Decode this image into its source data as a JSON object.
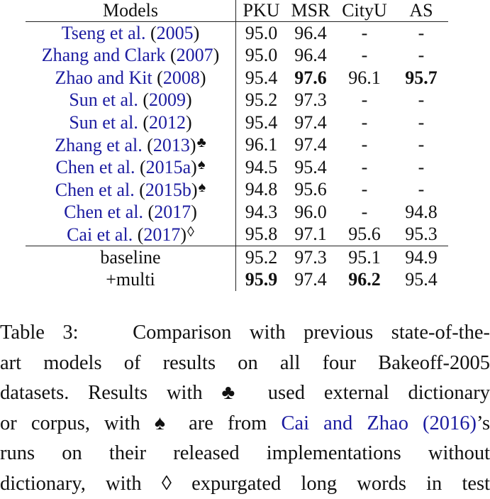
{
  "table": {
    "headers": [
      "Models",
      "PKU",
      "MSR",
      "CityU",
      "AS"
    ],
    "rows": [
      {
        "name": "Tseng et al.",
        "year": "2005",
        "mark": "",
        "pku": "95.0",
        "msr": "96.4",
        "cityu": "-",
        "as": "-"
      },
      {
        "name": "Zhang and Clark",
        "year": "2007",
        "mark": "",
        "pku": "95.0",
        "msr": "96.4",
        "cityu": "-",
        "as": "-"
      },
      {
        "name": "Zhao and Kit",
        "year": "2008",
        "mark": "",
        "pku": "95.4",
        "msr": "97.6",
        "cityu": "96.1",
        "as": "95.7"
      },
      {
        "name": "Sun et al.",
        "year": "2009",
        "mark": "",
        "pku": "95.2",
        "msr": "97.3",
        "cityu": "-",
        "as": "-"
      },
      {
        "name": "Sun et al.",
        "year": "2012",
        "mark": "",
        "pku": "95.4",
        "msr": "97.4",
        "cityu": "-",
        "as": "-"
      },
      {
        "name": "Zhang et al.",
        "year": "2013",
        "mark": "♣",
        "pku": "96.1",
        "msr": "97.4",
        "cityu": "-",
        "as": "-"
      },
      {
        "name": "Chen et al.",
        "year": "2015a",
        "mark": "♠",
        "pku": "94.5",
        "msr": "95.4",
        "cityu": "-",
        "as": "-"
      },
      {
        "name": "Chen et al.",
        "year": "2015b",
        "mark": "♠",
        "pku": "94.8",
        "msr": "95.6",
        "cityu": "-",
        "as": "-"
      },
      {
        "name": "Chen et al.",
        "year": "2017",
        "mark": "",
        "pku": "94.3",
        "msr": "96.0",
        "cityu": "-",
        "as": "94.8"
      },
      {
        "name": "Cai et al.",
        "year": "2017",
        "mark": "◊",
        "pku": "95.8",
        "msr": "97.1",
        "cityu": "95.6",
        "as": "95.3"
      }
    ],
    "ours": [
      {
        "name": "baseline",
        "pku": "95.2",
        "msr": "97.3",
        "cityu": "95.1",
        "as": "94.9"
      },
      {
        "name": "+multi",
        "pku": "95.9",
        "msr": "97.4",
        "cityu": "96.2",
        "as": "95.4"
      }
    ]
  },
  "caption": {
    "label": "Table 3:",
    "line1": "Comparison with previous state-of-the-",
    "line2": "art models of results on all four Bakeoff-2005",
    "line3_a": "datasets. Results with",
    "club": "♣",
    "line3_b": "used external dictionary",
    "line4_a": "or corpus, with",
    "spade": "♠",
    "line4_b": "are from",
    "cite_name": "Cai and Zhao",
    "cite_year": "2016",
    "line4_c": "’s",
    "line5": "runs on their released implementations without",
    "line6_a": "dictionary, with",
    "diamond": "◊",
    "line6_b": "expurgated long words in test"
  }
}
